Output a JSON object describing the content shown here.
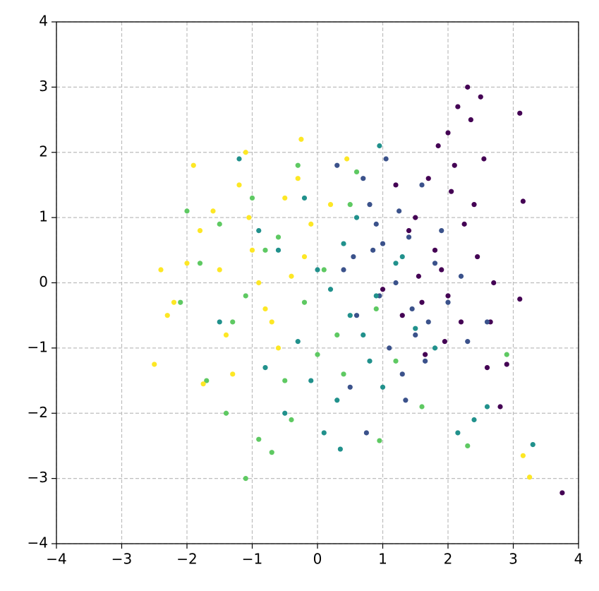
{
  "chart_data": {
    "type": "scatter",
    "xlim": [
      -4,
      4
    ],
    "ylim": [
      -4,
      4
    ],
    "xticks": [
      {
        "value": -4,
        "label": "−4"
      },
      {
        "value": -3,
        "label": "−3"
      },
      {
        "value": -2,
        "label": "−2"
      },
      {
        "value": -1,
        "label": "−1"
      },
      0,
      1,
      2,
      3,
      4
    ],
    "yticks": [
      {
        "value": -4,
        "label": "−4"
      },
      {
        "value": -3,
        "label": "−3"
      },
      {
        "value": -2,
        "label": "−2"
      },
      {
        "value": -1,
        "label": "−1"
      },
      0,
      1,
      2,
      3,
      4
    ],
    "grid": true,
    "series": [
      {
        "color": "#440154",
        "x": [
          1.8,
          2.1,
          2.3,
          2.5,
          2.4,
          1.9,
          1.6,
          2.0,
          2.7,
          3.1,
          2.2,
          1.5,
          1.7,
          2.6,
          2.45,
          1.3,
          1.4,
          2.05,
          2.8,
          3.75,
          3.1,
          2.35,
          1.95,
          2.55,
          1.0,
          1.2,
          2.65,
          1.85,
          2.25,
          2.0,
          3.15,
          1.65,
          2.9,
          1.55,
          2.15
        ],
        "values": [
          0.5,
          1.8,
          3.0,
          2.85,
          1.2,
          0.2,
          -0.3,
          2.3,
          0.0,
          2.6,
          -0.6,
          1.0,
          1.6,
          -1.3,
          0.4,
          -0.5,
          0.8,
          1.4,
          -1.9,
          -3.22,
          -0.25,
          2.5,
          -0.9,
          1.9,
          -0.1,
          1.5,
          -0.6,
          2.1,
          0.9,
          -0.2,
          1.25,
          -1.1,
          -1.25,
          0.1,
          2.7
        ]
      },
      {
        "color": "#3b528b",
        "x": [
          1.2,
          0.8,
          1.5,
          1.0,
          0.6,
          1.8,
          1.3,
          0.9,
          2.0,
          1.6,
          0.4,
          1.1,
          0.7,
          1.4,
          2.3,
          0.5,
          1.7,
          1.25,
          0.95,
          2.6,
          0.3,
          1.9,
          0.75,
          1.45,
          2.2,
          1.05,
          0.55,
          1.35,
          0.85,
          1.65
        ],
        "values": [
          0.0,
          1.2,
          -0.8,
          0.6,
          -0.5,
          0.3,
          -1.4,
          0.9,
          -0.3,
          1.5,
          0.2,
          -1.0,
          1.6,
          0.7,
          -0.9,
          -1.6,
          -0.6,
          1.1,
          -0.2,
          -0.6,
          1.8,
          0.8,
          -2.3,
          -0.4,
          0.1,
          1.9,
          0.4,
          -1.8,
          0.5,
          -1.2
        ]
      },
      {
        "color": "#21918c",
        "x": [
          0.5,
          0.0,
          0.8,
          -0.3,
          1.2,
          0.3,
          -0.6,
          0.9,
          0.1,
          1.5,
          -0.9,
          0.6,
          -0.1,
          0.4,
          1.8,
          -0.5,
          0.2,
          1.0,
          -1.2,
          2.6,
          0.7,
          -0.2,
          2.4,
          1.3,
          -0.8,
          0.35,
          3.3,
          2.15,
          0.95,
          -1.5
        ],
        "values": [
          -0.5,
          0.2,
          -1.2,
          -0.9,
          0.3,
          -1.8,
          0.5,
          -0.2,
          -2.3,
          -0.7,
          0.8,
          1.0,
          -1.5,
          0.6,
          -1.0,
          -2.0,
          -0.1,
          -1.6,
          1.9,
          -1.9,
          -0.8,
          1.3,
          -2.1,
          0.4,
          -1.3,
          -2.55,
          -2.48,
          -2.3,
          2.1,
          -0.6
        ]
      },
      {
        "color": "#5ec962",
        "x": [
          -0.2,
          -0.8,
          0.3,
          -1.3,
          0.5,
          -0.5,
          -1.0,
          0.1,
          -1.7,
          0.9,
          -0.4,
          -1.1,
          0.6,
          -1.5,
          -0.9,
          1.2,
          -2.1,
          0.0,
          -0.6,
          -1.1,
          -2.0,
          1.6,
          -0.3,
          0.4,
          -1.4,
          2.3,
          0.95,
          -1.8,
          -0.7,
          2.9
        ],
        "values": [
          -0.3,
          0.5,
          -0.8,
          -0.6,
          1.2,
          -1.5,
          1.3,
          0.2,
          -1.5,
          -0.4,
          -2.1,
          -0.2,
          1.7,
          0.9,
          -2.4,
          -1.2,
          -0.3,
          -1.1,
          0.7,
          -3.0,
          1.1,
          -1.9,
          1.8,
          -1.4,
          -2.0,
          -2.5,
          -2.42,
          0.3,
          -2.6,
          -1.1
        ]
      },
      {
        "color": "#fde725",
        "x": [
          -1.0,
          -1.5,
          -0.5,
          -1.8,
          -1.2,
          -0.8,
          -2.0,
          -0.3,
          -1.4,
          -0.1,
          -2.2,
          -1.1,
          -0.6,
          -1.6,
          -0.9,
          -2.4,
          -1.3,
          -0.2,
          -1.9,
          0.2,
          -2.5,
          -0.7,
          3.25,
          3.15,
          -0.25,
          -1.75,
          0.45,
          -2.3,
          -0.4,
          -1.05
        ],
        "values": [
          0.5,
          0.2,
          1.3,
          0.8,
          1.5,
          -0.4,
          0.3,
          1.6,
          -0.8,
          0.9,
          -0.3,
          2.0,
          -1.0,
          1.1,
          0.0,
          0.2,
          -1.4,
          0.4,
          1.8,
          1.2,
          -1.25,
          -0.6,
          -2.98,
          -2.65,
          2.2,
          -1.55,
          1.9,
          -0.5,
          0.1,
          1.0
        ]
      }
    ]
  }
}
